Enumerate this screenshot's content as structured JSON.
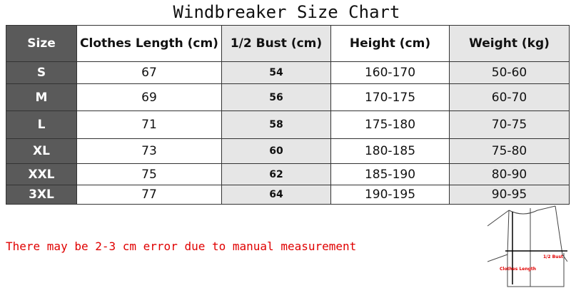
{
  "title": "Windbreaker Size Chart",
  "table": {
    "headers": [
      "Size",
      "Clothes Length (cm)",
      "1/2 Bust (cm)",
      "Height (cm)",
      "Weight (kg)"
    ],
    "rows": [
      [
        "S",
        "67",
        "54",
        "160-170",
        "50-60"
      ],
      [
        "M",
        "69",
        "56",
        "170-175",
        "60-70"
      ],
      [
        "L",
        "71",
        "58",
        "175-180",
        "70-75"
      ],
      [
        "XL",
        "73",
        "60",
        "180-185",
        "75-80"
      ],
      [
        "XXL",
        "75",
        "62",
        "185-190",
        "80-90"
      ],
      [
        "3XL",
        "77",
        "64",
        "190-195",
        "90-95"
      ]
    ]
  },
  "note": "There may be 2-3 cm error due to manual measurement",
  "diagram": {
    "bust_label": "1/2 Bust",
    "length_label": "Clothes Length"
  },
  "colors": {
    "size_column": "#5a5a5a",
    "shaded_column": "#e6e6e6",
    "note": "#e00000"
  }
}
